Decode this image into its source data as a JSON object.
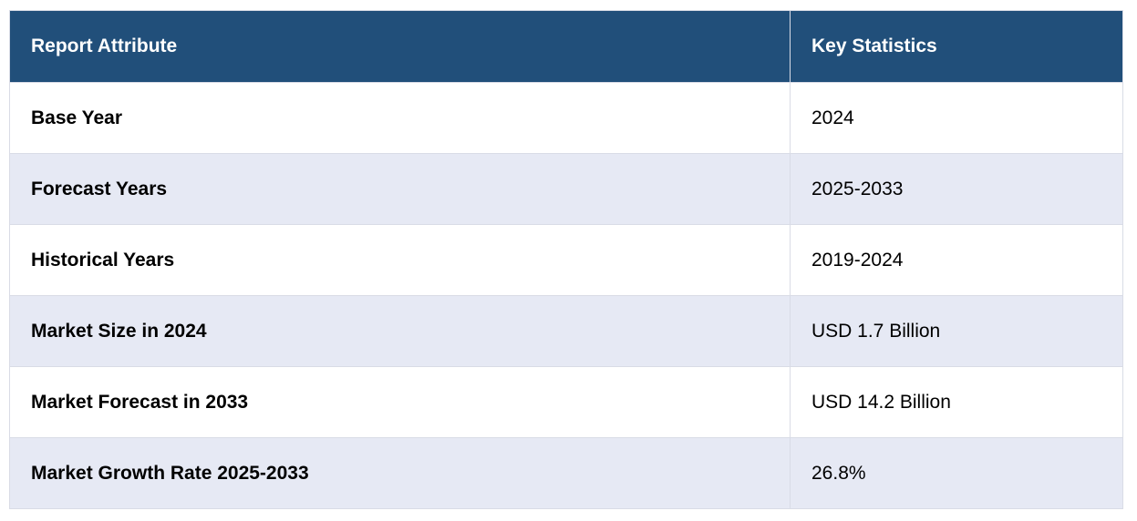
{
  "table": {
    "header": [
      "Report Attribute",
      "Key Statistics"
    ],
    "rows": [
      [
        "Base Year",
        "2024"
      ],
      [
        "Forecast Years",
        "2025-2033"
      ],
      [
        "Historical Years",
        "2019-2024"
      ],
      [
        "Market Size in 2024",
        "USD 1.7 Billion"
      ],
      [
        "Market Forecast in 2033",
        "USD 14.2 Billion"
      ],
      [
        "Market Growth Rate 2025-2033",
        "26.8%"
      ]
    ]
  }
}
